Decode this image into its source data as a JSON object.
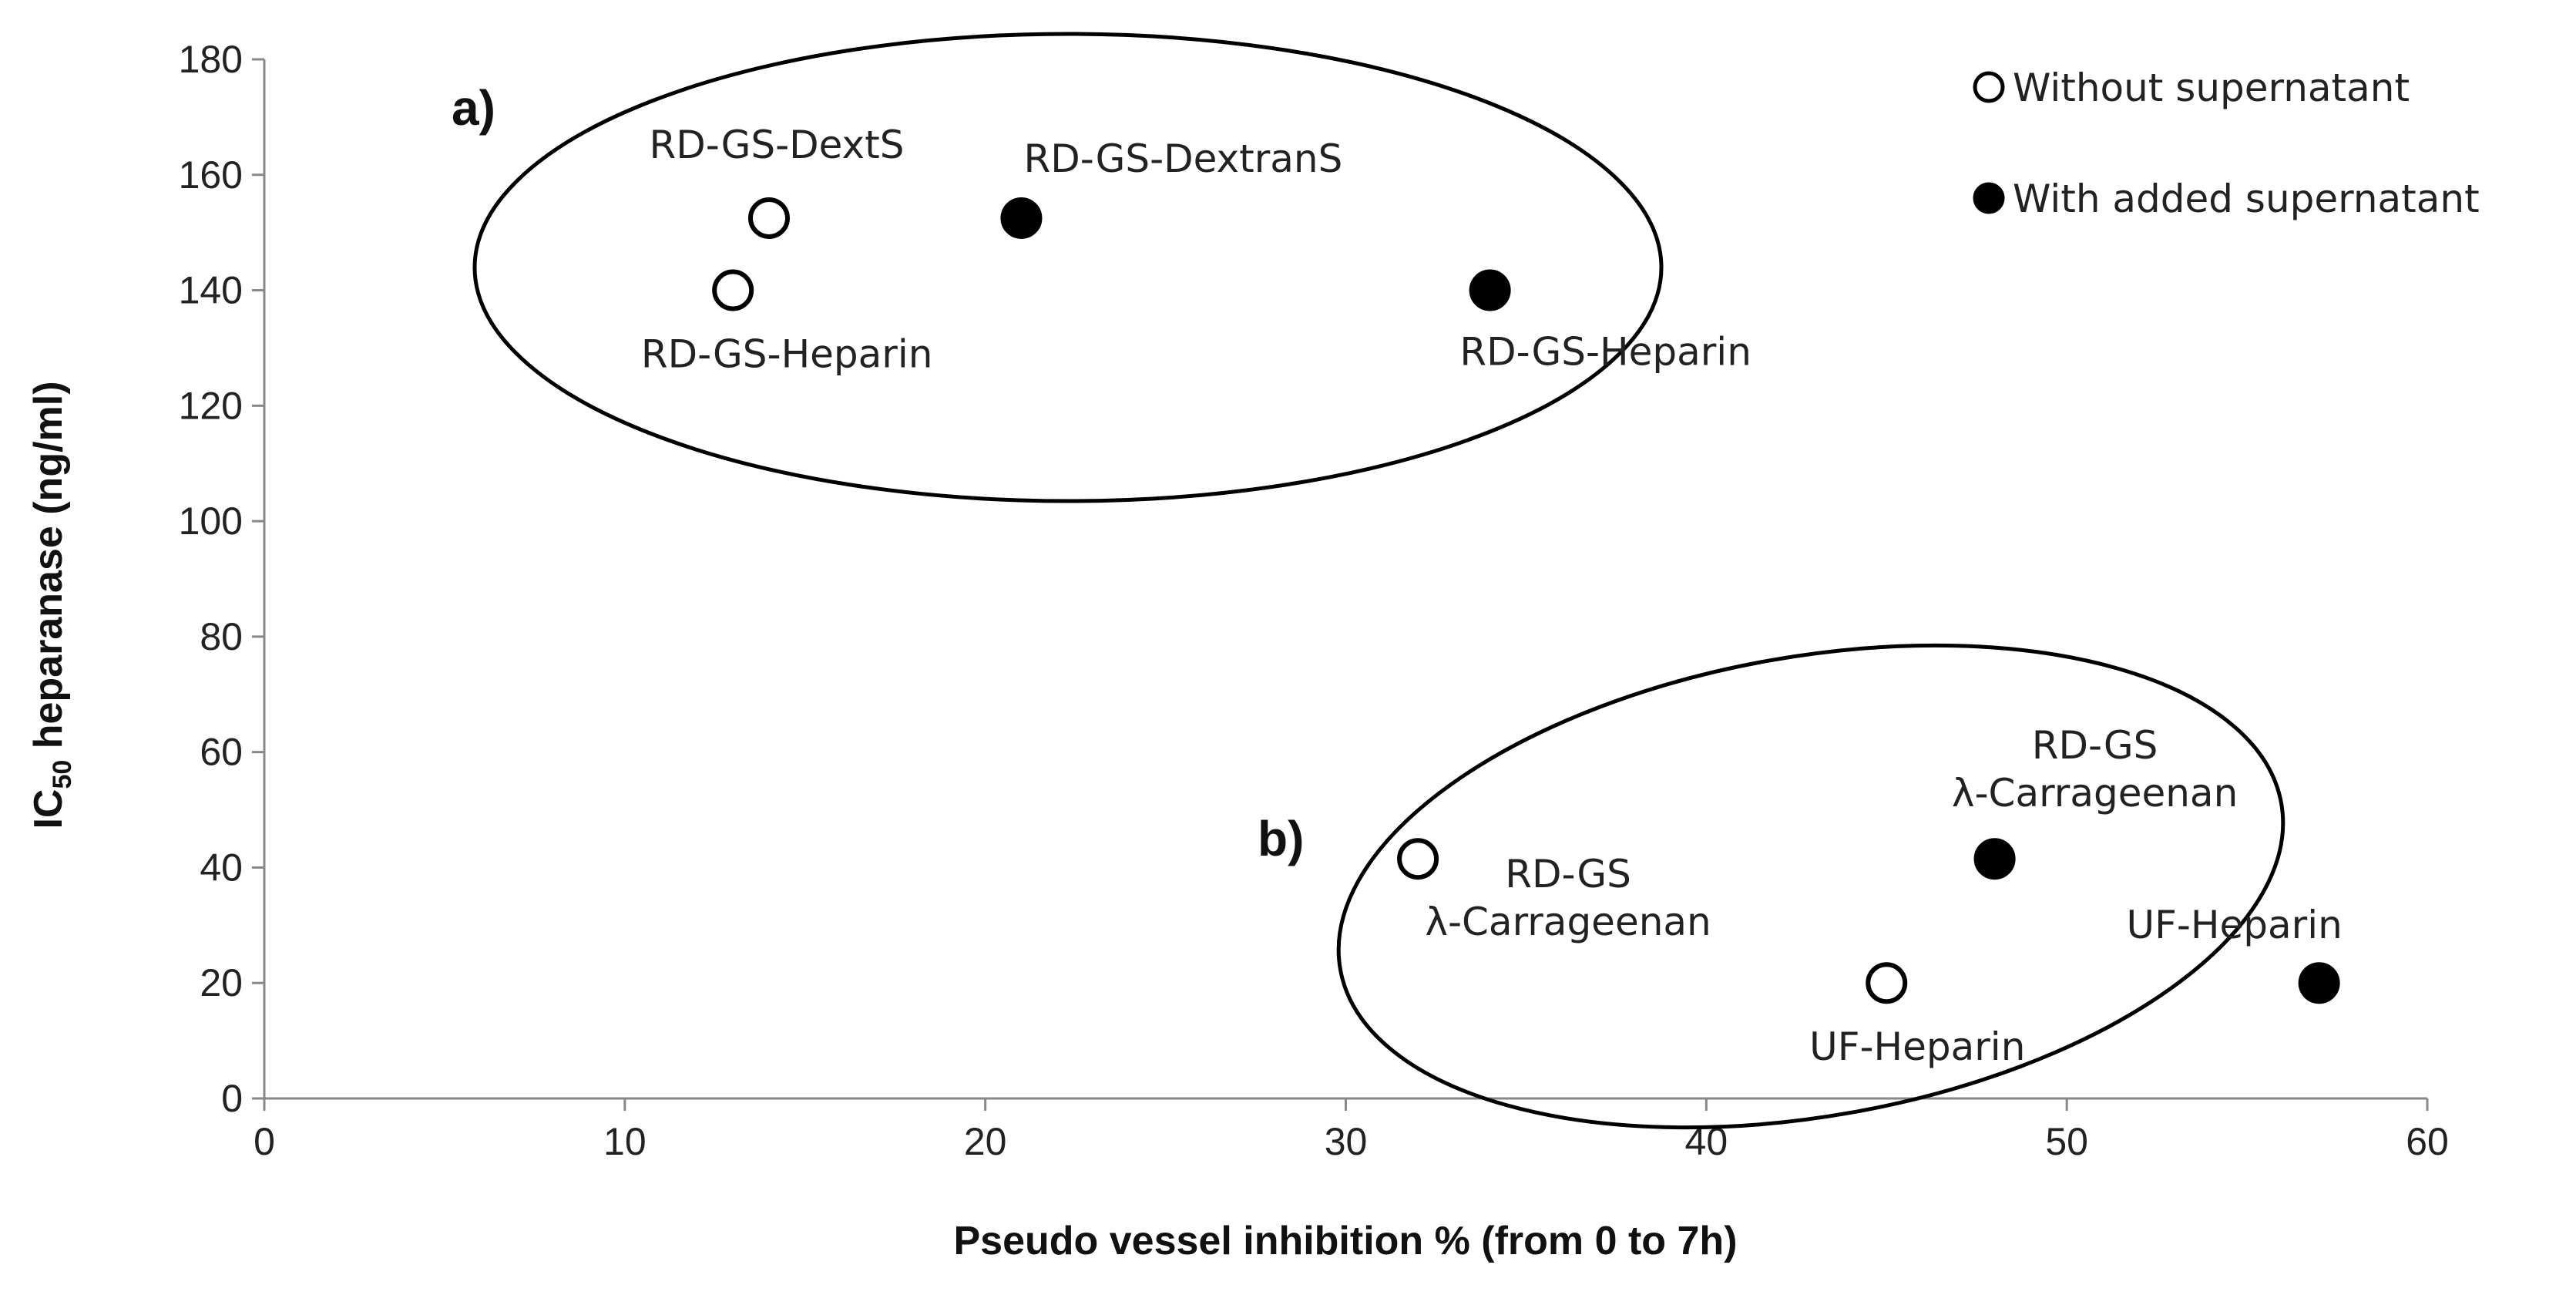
{
  "chart_data": {
    "type": "scatter",
    "title": "",
    "xlabel": "Pseudo vessel inhibition % (from 0 to 7h)",
    "ylabel_main": "IC",
    "ylabel_sub": "50",
    "ylabel_rest": " heparanase (ng/ml)",
    "xlim": [
      0,
      60
    ],
    "ylim": [
      0,
      180
    ],
    "xticks": [
      0,
      10,
      20,
      30,
      40,
      50,
      60
    ],
    "yticks": [
      0,
      20,
      40,
      60,
      80,
      100,
      120,
      140,
      160,
      180
    ],
    "grid": false,
    "legend_position": "top-right",
    "series": [
      {
        "name": "Without supernatant",
        "marker": "open-circle",
        "points": [
          {
            "x": 14,
            "y": 152.5,
            "label": "RD-GS-DextS"
          },
          {
            "x": 13,
            "y": 140,
            "label": "RD-GS-Heparin"
          },
          {
            "x": 32,
            "y": 41.5,
            "label": "RD-GS\nλ-Carrageenan"
          },
          {
            "x": 45,
            "y": 20,
            "label": "UF-Heparin"
          }
        ]
      },
      {
        "name": "With added supernatant",
        "marker": "filled-circle",
        "points": [
          {
            "x": 21,
            "y": 152.5,
            "label": "RD-GS-DextranS"
          },
          {
            "x": 34,
            "y": 140,
            "label": "RD-GS-Heparin"
          },
          {
            "x": 48,
            "y": 41.5,
            "label": "RD-GS\nλ-Carrageenan"
          },
          {
            "x": 57,
            "y": 20,
            "label": "UF-Heparin"
          }
        ]
      }
    ],
    "groups": [
      {
        "label": "a)"
      },
      {
        "label": "b)"
      }
    ],
    "colors": {
      "marker_fill": "#000000",
      "marker_open_fill": "#ffffff",
      "axis": "#888888"
    }
  }
}
